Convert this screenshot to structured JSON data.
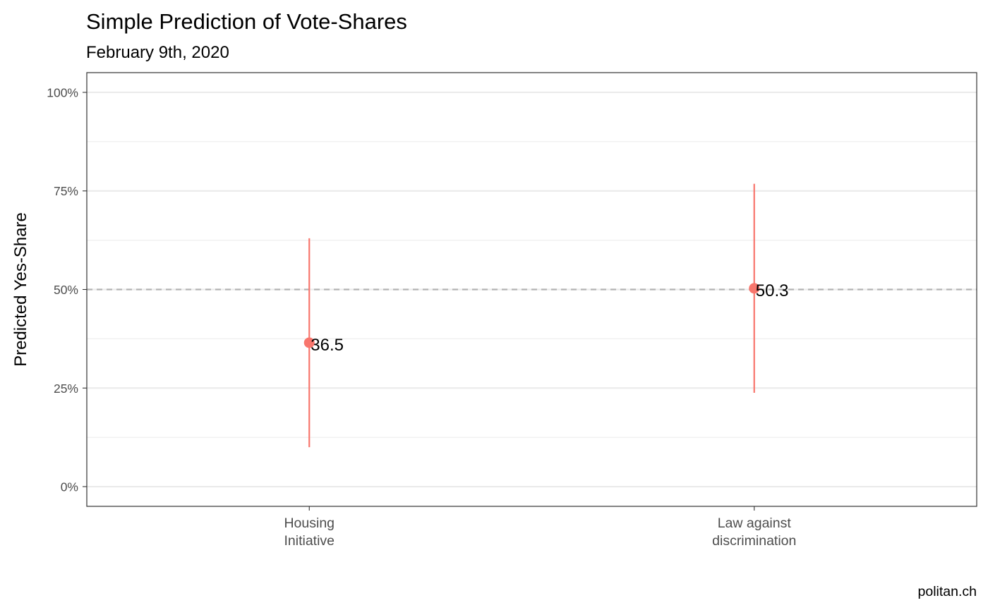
{
  "chart_data": {
    "type": "scatter",
    "title": "Simple Prediction of Vote-Shares",
    "subtitle": "February 9th, 2020",
    "xlabel": "",
    "ylabel": "Predicted Yes-Share",
    "caption": "politan.ch",
    "categories": [
      [
        "Housing",
        "Initiative"
      ],
      [
        "Law against",
        "discrimination"
      ]
    ],
    "points": [
      {
        "category": "Housing Initiative",
        "value": 36.5,
        "lower": 10.0,
        "upper": 63.0,
        "label": "36.5"
      },
      {
        "category": "Law against discrimination",
        "value": 50.3,
        "lower": 23.8,
        "upper": 76.8,
        "label": "50.3"
      }
    ],
    "ylim": [
      -5,
      105
    ],
    "yticks": [
      0,
      25,
      50,
      75,
      100
    ],
    "ytick_labels": [
      "0%",
      "25%",
      "50%",
      "75%",
      "100%"
    ],
    "reference_line": {
      "value": 50,
      "style": "dashed",
      "color": "#b3b3b3"
    },
    "grid": true,
    "legend": "none",
    "colors": {
      "point": "#f8766d",
      "interval": "#f8766d",
      "grid": "#ebebeb",
      "panel_border": "#333333",
      "tick_text": "#4d4d4d"
    }
  }
}
